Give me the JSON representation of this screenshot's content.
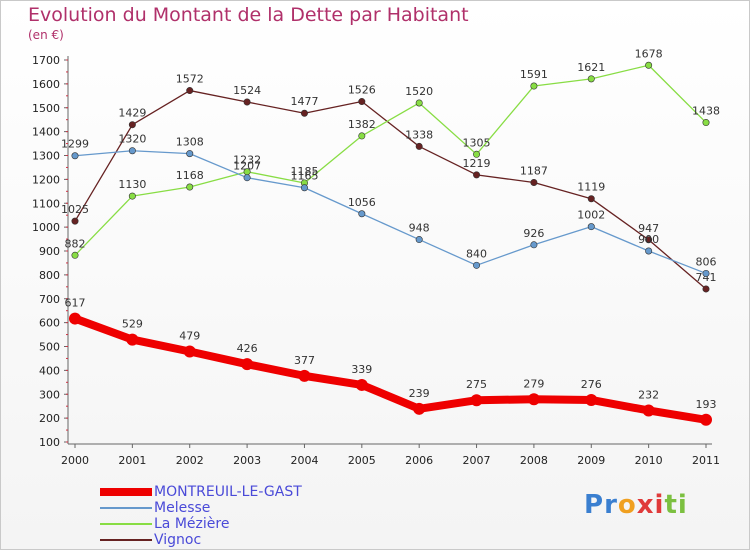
{
  "page": {
    "title": "Evolution du Montant de la Dette par Habitant",
    "subtitle": "(en €)"
  },
  "logo": {
    "text": "Proxiti",
    "letter_colors": [
      "#3a7fd0",
      "#3a7fd0",
      "#f0a020",
      "#e03a3a",
      "#e03a3a",
      "#7cc040",
      "#7cc040"
    ]
  },
  "chart_data": {
    "type": "line",
    "title": "Evolution du Montant de la Dette par Habitant",
    "ylabel": "(en €)",
    "xlabel": "",
    "x": [
      "2000",
      "2001",
      "2002",
      "2003",
      "2004",
      "2005",
      "2006",
      "2007",
      "2008",
      "2009",
      "2010",
      "2011"
    ],
    "yticks": [
      100,
      200,
      300,
      400,
      500,
      600,
      700,
      800,
      900,
      1000,
      1100,
      1200,
      1300,
      1400,
      1500,
      1600,
      1700
    ],
    "ylim": [
      100,
      1700
    ],
    "grid": false,
    "legend": "bottom-left",
    "series": [
      {
        "name": "MONTREUIL-LE-GAST",
        "color": "#ee0000",
        "values": [
          617,
          529,
          479,
          426,
          377,
          339,
          239,
          275,
          279,
          276,
          232,
          193
        ]
      },
      {
        "name": "Melesse",
        "color": "#6699cc",
        "values": [
          1299,
          1320,
          1308,
          1207,
          1165,
          1056,
          948,
          840,
          926,
          1002,
          900,
          806
        ]
      },
      {
        "name": "La Mézière",
        "color": "#88dd44",
        "values": [
          882,
          1130,
          1168,
          1232,
          1185,
          1382,
          1520,
          1305,
          1591,
          1621,
          1678,
          1438
        ]
      },
      {
        "name": "Vignoc",
        "color": "#662222",
        "values": [
          1025,
          1429,
          1572,
          1524,
          1477,
          1526,
          1338,
          1219,
          1187,
          1119,
          947,
          741
        ]
      }
    ]
  }
}
